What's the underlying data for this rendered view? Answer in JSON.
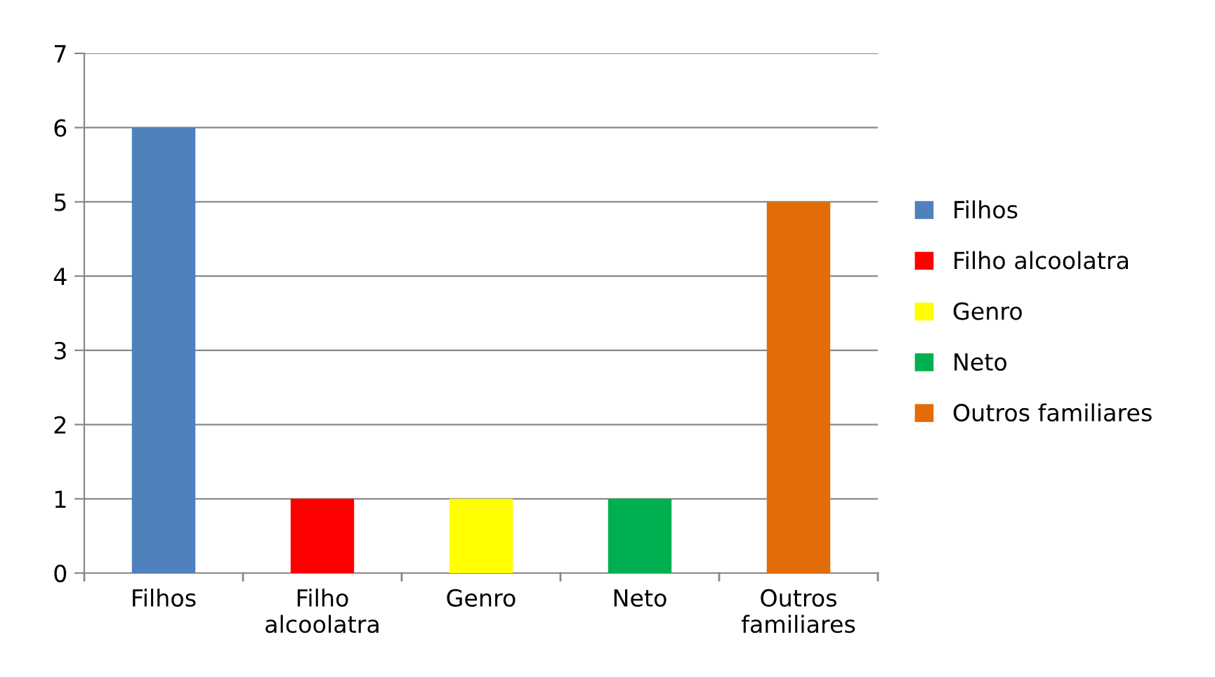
{
  "chart_data": {
    "type": "bar",
    "categories": [
      "Filhos",
      "Filho alcoolatra",
      "Genro",
      "Neto",
      "Outros familiares"
    ],
    "series": [
      {
        "name": "Filhos",
        "color": "#4f81bd",
        "values": [
          6,
          null,
          null,
          null,
          null
        ]
      },
      {
        "name": "Filho alcoolatra",
        "color": "#ff0000",
        "values": [
          null,
          1,
          null,
          null,
          null
        ]
      },
      {
        "name": "Genro",
        "color": "#ffff00",
        "values": [
          null,
          null,
          1,
          null,
          null
        ]
      },
      {
        "name": "Neto",
        "color": "#00b050",
        "values": [
          null,
          null,
          null,
          1,
          null
        ]
      },
      {
        "name": "Outros familiares",
        "color": "#e36c09",
        "values": [
          null,
          null,
          null,
          null,
          5
        ]
      }
    ],
    "ylim": [
      0,
      7
    ],
    "yticks": [
      0,
      1,
      2,
      3,
      4,
      5,
      6,
      7
    ],
    "grid": "y",
    "legend": "right"
  }
}
